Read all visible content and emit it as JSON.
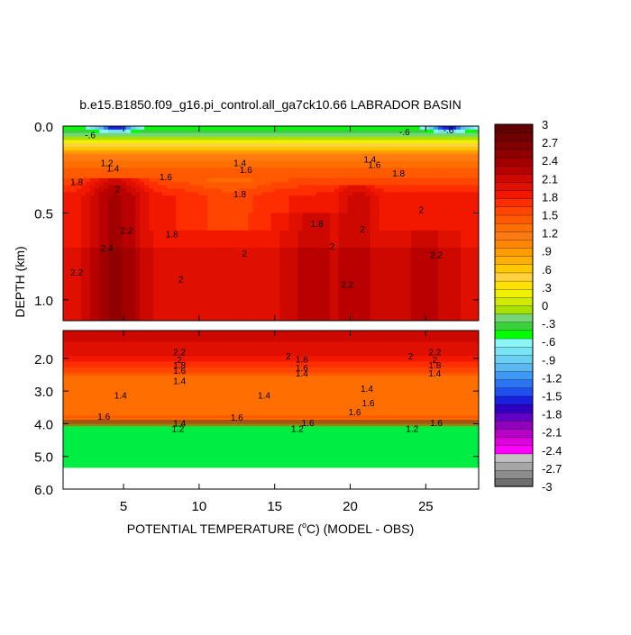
{
  "chart_data": {
    "type": "heatmap",
    "title": "b.e15.B1850.f09_g16.pi_control.all_ga7ck10.66 LABRADOR BASIN",
    "xlabel": "POTENTIAL TEMPERATURE (",
    "xlabel_sup": "o",
    "xlabel_tail": "C) (MODEL - OBS)",
    "ylabel": "DEPTH (km)",
    "xlim": [
      1,
      28.5
    ],
    "x_ticks": [
      5,
      10,
      15,
      20,
      25
    ],
    "x_tick_labels": [
      "5",
      "10",
      "15",
      "20",
      "25"
    ],
    "panels": [
      {
        "name": "upper",
        "ylim": [
          0.0,
          1.12
        ],
        "y_ticks": [
          0.0,
          0.5,
          1.0
        ],
        "y_tick_labels": [
          "0.0",
          "0.5",
          "1.0"
        ],
        "contour_labels": [
          {
            "text": "-.6",
            "x": 2.8,
            "y": 0.05
          },
          {
            "text": "-.6",
            "x": 26.5,
            "y": 0.02
          },
          {
            "text": "1.2",
            "x": 3.9,
            "y": 0.21
          },
          {
            "text": "1.4",
            "x": 4.3,
            "y": 0.24
          },
          {
            "text": "1.6",
            "x": 7.8,
            "y": 0.29
          },
          {
            "text": "1.8",
            "x": 1.9,
            "y": 0.32
          },
          {
            "text": "2",
            "x": 4.6,
            "y": 0.36
          },
          {
            "text": "2.2",
            "x": 5.2,
            "y": 0.6
          },
          {
            "text": "2.4",
            "x": 3.9,
            "y": 0.7
          },
          {
            "text": "2.2",
            "x": 1.9,
            "y": 0.84
          },
          {
            "text": "1.8",
            "x": 8.2,
            "y": 0.62
          },
          {
            "text": "2",
            "x": 8.8,
            "y": 0.88
          },
          {
            "text": "1.8",
            "x": 12.7,
            "y": 0.39
          },
          {
            "text": "1.4",
            "x": 12.7,
            "y": 0.21
          },
          {
            "text": "1.6",
            "x": 13.1,
            "y": 0.25
          },
          {
            "text": "2",
            "x": 13.0,
            "y": 0.73
          },
          {
            "text": "1.8",
            "x": 17.8,
            "y": 0.56
          },
          {
            "text": "2",
            "x": 18.8,
            "y": 0.69
          },
          {
            "text": "2.2",
            "x": 19.8,
            "y": 0.91
          },
          {
            "text": "2",
            "x": 20.8,
            "y": 0.59
          },
          {
            "text": "1.4",
            "x": 21.3,
            "y": 0.19
          },
          {
            "text": "1.6",
            "x": 21.6,
            "y": 0.22
          },
          {
            "text": "1.8",
            "x": 23.2,
            "y": 0.27
          },
          {
            "text": "2",
            "x": 24.7,
            "y": 0.48
          },
          {
            "text": "2.2",
            "x": 25.7,
            "y": 0.74
          },
          {
            "text": "-.6",
            "x": 23.6,
            "y": 0.03
          }
        ]
      },
      {
        "name": "lower",
        "ylim": [
          1.15,
          6.0
        ],
        "y_ticks": [
          2.0,
          3.0,
          4.0,
          5.0,
          6.0
        ],
        "y_tick_labels": [
          "2.0",
          "3.0",
          "4.0",
          "5.0",
          "6.0"
        ],
        "contour_labels": [
          {
            "text": "2.2",
            "x": 8.7,
            "y": 1.8
          },
          {
            "text": "2",
            "x": 8.7,
            "y": 2.03
          },
          {
            "text": "1.8",
            "x": 8.7,
            "y": 2.2
          },
          {
            "text": "1.6",
            "x": 8.7,
            "y": 2.36
          },
          {
            "text": "1.4",
            "x": 8.7,
            "y": 2.68
          },
          {
            "text": "1.4",
            "x": 4.8,
            "y": 3.12
          },
          {
            "text": "1.6",
            "x": 3.7,
            "y": 3.77
          },
          {
            "text": "1.6",
            "x": 12.5,
            "y": 3.79
          },
          {
            "text": "1.4",
            "x": 14.3,
            "y": 3.12
          },
          {
            "text": "2",
            "x": 15.9,
            "y": 1.92
          },
          {
            "text": "1.8",
            "x": 16.8,
            "y": 2.02
          },
          {
            "text": "1.6",
            "x": 16.8,
            "y": 2.28
          },
          {
            "text": "1.4",
            "x": 16.8,
            "y": 2.45
          },
          {
            "text": "1.4",
            "x": 21.1,
            "y": 2.92
          },
          {
            "text": "1.6",
            "x": 21.2,
            "y": 3.35
          },
          {
            "text": "1.6",
            "x": 20.3,
            "y": 3.63
          },
          {
            "text": "2",
            "x": 24.0,
            "y": 1.92
          },
          {
            "text": "2.2",
            "x": 25.6,
            "y": 1.8
          },
          {
            "text": "2",
            "x": 25.6,
            "y": 2.03
          },
          {
            "text": "1.8",
            "x": 25.6,
            "y": 2.2
          },
          {
            "text": "1.4",
            "x": 25.6,
            "y": 2.45
          },
          {
            "text": "1.4",
            "x": 8.7,
            "y": 3.98
          },
          {
            "text": "1.2",
            "x": 8.6,
            "y": 4.14
          },
          {
            "text": "1.6",
            "x": 17.2,
            "y": 3.96
          },
          {
            "text": "1.2",
            "x": 16.5,
            "y": 4.14
          },
          {
            "text": "1.6",
            "x": 25.7,
            "y": 3.96
          },
          {
            "text": "1.2",
            "x": 24.1,
            "y": 4.14
          }
        ]
      }
    ],
    "colorbar": {
      "levels": [
        -3,
        -2.7,
        -2.4,
        -2.1,
        -1.8,
        -1.5,
        -1.2,
        -0.9,
        -0.6,
        -0.3,
        0,
        0.3,
        0.6,
        0.9,
        1.2,
        1.5,
        1.8,
        2.1,
        2.4,
        2.7,
        3
      ],
      "labels": [
        "-3",
        "-2.7",
        "-2.4",
        "-2.1",
        "-1.8",
        "-1.5",
        "-1.2",
        "-.9",
        "-.6",
        "-.3",
        "0",
        ".3",
        ".6",
        ".9",
        "1.2",
        "1.5",
        "1.8",
        "2.1",
        "2.4",
        "2.7",
        "3"
      ],
      "colors_below_minus_2_7": [
        "#6e6e6e",
        "#8c8c8c",
        "#a6a6a6",
        "#c2c2c2"
      ],
      "colors": [
        "#ff00ff",
        "#dd00dd",
        "#b800c8",
        "#8f00b8",
        "#6000c8",
        "#2f00c0",
        "#1a20e0",
        "#2050f0",
        "#2c74f4",
        "#3d98f6",
        "#5bb8f0",
        "#6ad0f2",
        "#7ae4f4",
        "#8cf6f6",
        "#00ff00",
        "#3ad23a",
        "#74d674",
        "#a8e000",
        "#d2ea00",
        "#f0f000",
        "#ffe000",
        "#ffd040",
        "#ffc800",
        "#ffb000",
        "#ff9c00",
        "#ff8600",
        "#ff7a10",
        "#ff6e00",
        "#ff5a00",
        "#ff4600",
        "#ff2e00",
        "#f21800",
        "#e01000",
        "#cc0800",
        "#b80000",
        "#a20000",
        "#900000",
        "#800000",
        "#700000",
        "#600000"
      ]
    }
  }
}
